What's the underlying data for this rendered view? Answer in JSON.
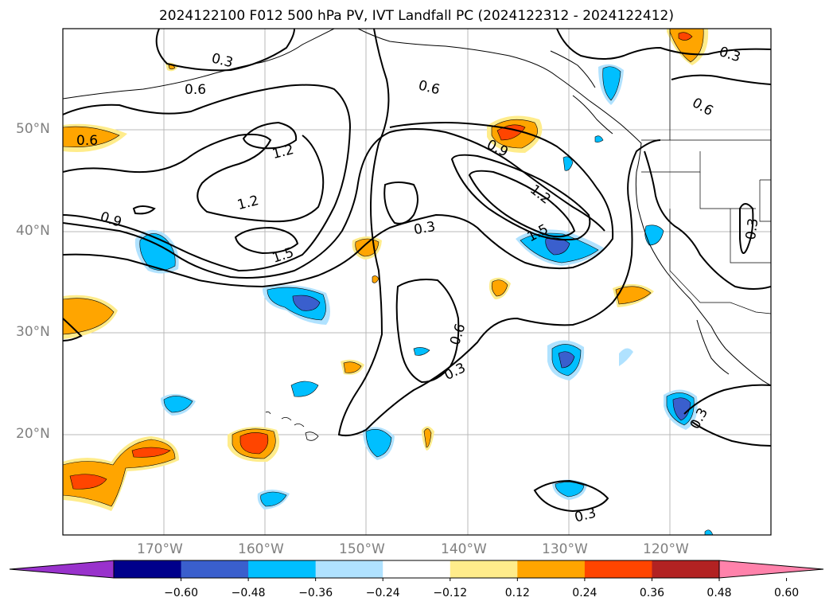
{
  "title": "2024122100 F012 500 hPa PV, IVT Landfall PC (2024122312 - 2024122412)",
  "latitude_labels": [
    "50°N",
    "40°N",
    "30°N",
    "20°N"
  ],
  "longitude_labels": [
    "170°W",
    "160°W",
    "150°W",
    "140°W",
    "130°W",
    "120°W"
  ],
  "colorbar": {
    "ticks": [
      "−0.60",
      "−0.48",
      "−0.36",
      "−0.24",
      "−0.12",
      "0.12",
      "0.24",
      "0.36",
      "0.48",
      "0.60"
    ],
    "colors": [
      "#9932cc",
      "#00008b",
      "#3a5fcd",
      "#00bfff",
      "#b0e2ff",
      "#ffffff",
      "#ffec8b",
      "#ffa500",
      "#ff4500",
      "#b22222",
      "#ff82ab"
    ]
  },
  "contour_labels": {
    "l1": "0.3",
    "l2": "0.6",
    "l3": "0.6",
    "l4": "0.6",
    "l5": "1.2",
    "l6": "1.2",
    "l7": "0.9",
    "l8": "1.5",
    "l9": "0.3",
    "l10": "0.9",
    "l11": "1.2",
    "l12": "1.5",
    "l13": "0.6",
    "l14": "0.3",
    "l15": "0.3",
    "l16": "0.6",
    "l17": "0.3",
    "l18": "0.3",
    "l19": "0.3"
  }
}
